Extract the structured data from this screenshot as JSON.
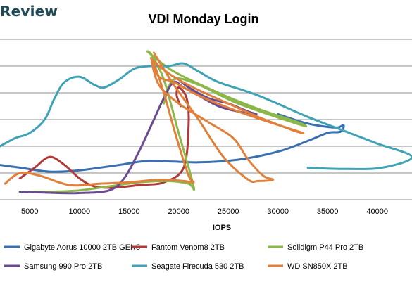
{
  "brand": {
    "text": "Review"
  },
  "chart_data": {
    "type": "line",
    "title": "VDI Monday Login",
    "xlabel": "IOPS",
    "ylabel": "",
    "xlim": [
      2000,
      43500
    ],
    "ylim": [
      0,
      10
    ],
    "x_ticks": [
      5000,
      10000,
      15000,
      20000,
      25000,
      30000,
      35000,
      40000
    ],
    "x_tick_labels": [
      "5000",
      "10000",
      "15000",
      "20000",
      "25000",
      "30000",
      "35000",
      "40000"
    ],
    "y_gridlines": [
      1,
      2,
      3,
      4,
      5,
      6
    ],
    "grid": true,
    "legend_position": "bottom",
    "series": [
      {
        "name": "Gigabyte Aorus 10000 2TB GEN5",
        "color": "#3a6fb0",
        "points": [
          [
            2000,
            1.3
          ],
          [
            4000,
            1.2
          ],
          [
            7000,
            1.05
          ],
          [
            10000,
            1.1
          ],
          [
            14000,
            1.3
          ],
          [
            17000,
            1.45
          ],
          [
            22000,
            1.4
          ],
          [
            26000,
            1.5
          ],
          [
            30000,
            1.8
          ],
          [
            33000,
            2.2
          ],
          [
            35000,
            2.5
          ],
          [
            36300,
            2.55
          ],
          [
            36600,
            2.8
          ],
          [
            35800,
            2.7
          ],
          [
            33000,
            2.85
          ],
          [
            30000,
            3.2
          ]
        ]
      },
      {
        "name": "Fantom Venom8 2TB",
        "color": "#b03a3a",
        "points": [
          [
            4000,
            0.8
          ],
          [
            5500,
            1.2
          ],
          [
            7000,
            1.6
          ],
          [
            8500,
            1.3
          ],
          [
            10000,
            0.8
          ],
          [
            11500,
            0.5
          ],
          [
            13500,
            0.45
          ],
          [
            16000,
            0.55
          ],
          [
            18500,
            0.65
          ],
          [
            20500,
            1.2
          ],
          [
            21000,
            2.8
          ],
          [
            20800,
            3.8
          ],
          [
            20000,
            4.2
          ],
          [
            19800,
            3.9
          ],
          [
            20200,
            3.5
          ]
        ]
      },
      {
        "name": "Solidigm P44 Pro 2TB",
        "color": "#8cb84a",
        "points": [
          [
            4000,
            0.3
          ],
          [
            7000,
            0.3
          ],
          [
            10000,
            0.35
          ],
          [
            13000,
            0.5
          ],
          [
            16000,
            0.65
          ],
          [
            19000,
            0.7
          ],
          [
            21000,
            0.6
          ],
          [
            21500,
            0.5
          ],
          [
            20000,
            2.5
          ],
          [
            18500,
            4.5
          ],
          [
            17300,
            5.4
          ],
          [
            17000,
            5.5
          ],
          [
            19500,
            4.8
          ],
          [
            24000,
            4.0
          ],
          [
            28000,
            3.4
          ],
          [
            32000,
            2.9
          ],
          [
            32300,
            2.8
          ],
          [
            26000,
            3.6
          ],
          [
            22000,
            4.3
          ],
          [
            19500,
            4.5
          ],
          [
            18500,
            3.6
          ]
        ]
      },
      {
        "name": "Samsung 990 Pro 2TB",
        "color": "#6a4a90",
        "points": [
          [
            4000,
            0.3
          ],
          [
            8000,
            0.25
          ],
          [
            10000,
            0.25
          ],
          [
            13000,
            0.35
          ],
          [
            14500,
            0.8
          ],
          [
            16000,
            1.8
          ],
          [
            17500,
            3.0
          ],
          [
            18500,
            3.8
          ],
          [
            19500,
            4.4
          ],
          [
            20500,
            4.2
          ],
          [
            22000,
            3.9
          ],
          [
            24000,
            3.5
          ],
          [
            26000,
            3.3
          ],
          [
            27800,
            3.2
          ],
          [
            27000,
            3.3
          ],
          [
            25000,
            3.6
          ],
          [
            23000,
            3.8
          ],
          [
            21000,
            4.2
          ],
          [
            20000,
            4.5
          ]
        ]
      },
      {
        "name": "Seagate Firecuda 530 2TB",
        "color": "#3fa3b5",
        "points": [
          [
            2000,
            2.0
          ],
          [
            3500,
            2.3
          ],
          [
            5000,
            2.5
          ],
          [
            6500,
            3.0
          ],
          [
            7500,
            3.8
          ],
          [
            8500,
            4.4
          ],
          [
            10000,
            4.6
          ],
          [
            11500,
            4.3
          ],
          [
            12500,
            4.2
          ],
          [
            14000,
            4.5
          ],
          [
            15500,
            4.9
          ],
          [
            17000,
            5.0
          ],
          [
            19000,
            5.0
          ],
          [
            20500,
            5.1
          ],
          [
            22000,
            4.8
          ],
          [
            24000,
            4.4
          ],
          [
            28000,
            3.9
          ],
          [
            33000,
            3.1
          ],
          [
            36500,
            2.6
          ],
          [
            40000,
            2.1
          ],
          [
            43500,
            1.6
          ],
          [
            40500,
            1.2
          ],
          [
            37000,
            1.15
          ],
          [
            34000,
            1.18
          ],
          [
            33000,
            1.2
          ]
        ]
      },
      {
        "name": "WD SN850X 2TB",
        "color": "#e0803a",
        "points": [
          [
            2500,
            0.6
          ],
          [
            4000,
            1.0
          ],
          [
            6000,
            0.9
          ],
          [
            9000,
            0.55
          ],
          [
            12000,
            0.6
          ],
          [
            15000,
            0.65
          ],
          [
            18000,
            0.75
          ],
          [
            20500,
            0.7
          ],
          [
            21500,
            0.65
          ],
          [
            21000,
            0.9
          ],
          [
            19800,
            2.3
          ],
          [
            18500,
            4.0
          ],
          [
            17600,
            5.0
          ],
          [
            17200,
            5.3
          ],
          [
            17700,
            5.1
          ],
          [
            19500,
            4.6
          ],
          [
            22000,
            4.1
          ],
          [
            25000,
            3.6
          ],
          [
            28000,
            3.1
          ],
          [
            31500,
            2.6
          ],
          [
            32500,
            2.5
          ],
          [
            30000,
            2.8
          ],
          [
            26000,
            3.3
          ],
          [
            22000,
            3.9
          ],
          [
            19500,
            4.4
          ],
          [
            18000,
            4.6
          ],
          [
            17300,
            5.2
          ],
          [
            18000,
            4.3
          ],
          [
            20000,
            3.6
          ],
          [
            23000,
            2.9
          ],
          [
            25500,
            2.3
          ],
          [
            27000,
            1.5
          ],
          [
            28500,
            0.9
          ],
          [
            29500,
            0.75
          ],
          [
            28000,
            0.7
          ],
          [
            27000,
            0.75
          ],
          [
            24500,
            1.6
          ],
          [
            22000,
            3.0
          ],
          [
            19500,
            4.3
          ],
          [
            17500,
            5.5
          ]
        ]
      }
    ]
  }
}
